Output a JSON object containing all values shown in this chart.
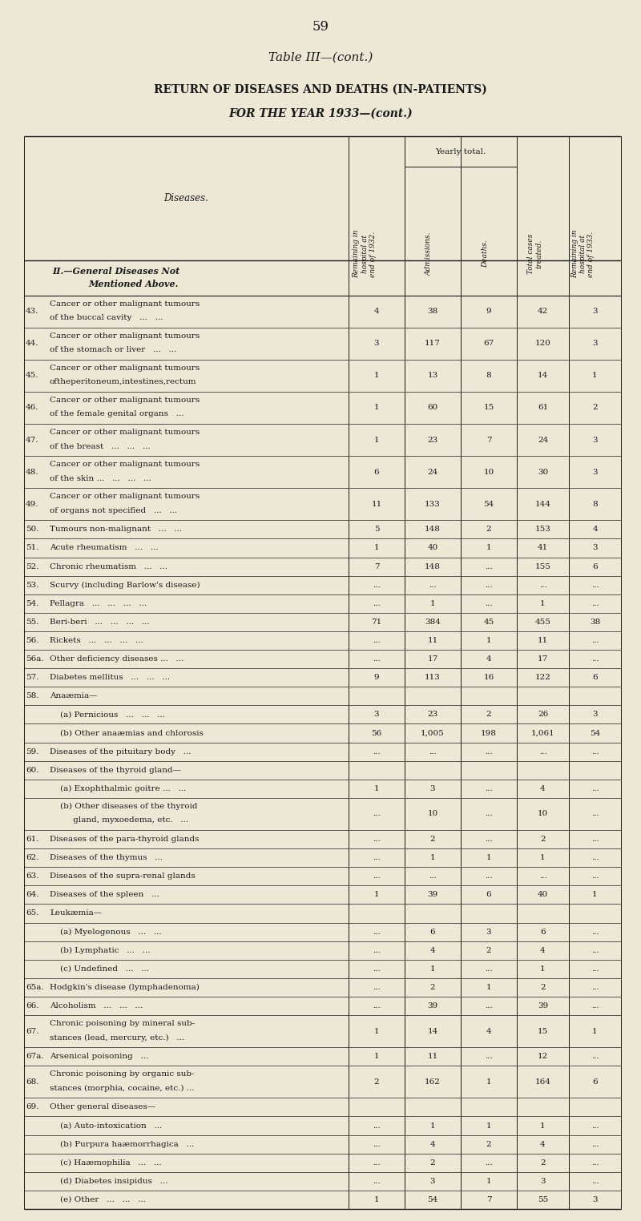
{
  "page_number": "59",
  "table_title": "Table III—(cont.)",
  "subtitle1": "RETURN OF DISEASES AND DEATHS (IN-PATIENTS)",
  "subtitle2": "FOR THE YEAR 1933—(cont.)",
  "col_headers": [
    "Remaining in\nhospital at\nend of 1932.",
    "Admissions.",
    "Deaths.",
    "Total cases\ntreated.",
    "Remaining in\nhospital at\nend of 1933."
  ],
  "yearly_total_label": "Yearly total.",
  "section_header_line1": "II.—General Diseases Not",
  "section_header_line2": "Mentioned Above.",
  "rows": [
    {
      "num": "43.",
      "desc": "Cancer or other malignant tumours\nof the buccal cavity   ...   ...",
      "c1": "4",
      "c2": "38",
      "c3": "9",
      "c4": "42",
      "c5": "3"
    },
    {
      "num": "44.",
      "desc": "Cancer or other malignant tumours\nof the stomach or liver   ...   ...",
      "c1": "3",
      "c2": "117",
      "c3": "67",
      "c4": "120",
      "c5": "3"
    },
    {
      "num": "45.",
      "desc": "Cancer or other malignant tumours\noftheperitoneum,intestines,rectum",
      "c1": "1",
      "c2": "13",
      "c3": "8",
      "c4": "14",
      "c5": "1"
    },
    {
      "num": "46.",
      "desc": "Cancer or other malignant tumours\nof the female genital organs   ...",
      "c1": "1",
      "c2": "60",
      "c3": "15",
      "c4": "61",
      "c5": "2"
    },
    {
      "num": "47.",
      "desc": "Cancer or other malignant tumours\nof the breast   ...   ...   ...",
      "c1": "1",
      "c2": "23",
      "c3": "7",
      "c4": "24",
      "c5": "3"
    },
    {
      "num": "48.",
      "desc": "Cancer or other malignant tumours\nof the skin ...   ...   ...   ...",
      "c1": "6",
      "c2": "24",
      "c3": "10",
      "c4": "30",
      "c5": "3"
    },
    {
      "num": "49.",
      "desc": "Cancer or other malignant tumours\nof organs not specified   ...   ...",
      "c1": "11",
      "c2": "133",
      "c3": "54",
      "c4": "144",
      "c5": "8"
    },
    {
      "num": "50.",
      "desc": "Tumours non-malignant   ...   ...",
      "c1": "5",
      "c2": "148",
      "c3": "2",
      "c4": "153",
      "c5": "4"
    },
    {
      "num": "51.",
      "desc": "Acute rheumatism   ...   ...",
      "c1": "1",
      "c2": "40",
      "c3": "1",
      "c4": "41",
      "c5": "3"
    },
    {
      "num": "52.",
      "desc": "Chronic rheumatism   ...   ...",
      "c1": "7",
      "c2": "148",
      "c3": "...",
      "c4": "155",
      "c5": "6"
    },
    {
      "num": "53.",
      "desc": "Scurvy (including Barlow's disease)",
      "c1": "...",
      "c2": "...",
      "c3": "...",
      "c4": "...",
      "c5": "..."
    },
    {
      "num": "54.",
      "desc": "Pellagra   ...   ...   ...   ...",
      "c1": "...",
      "c2": "1",
      "c3": "...",
      "c4": "1",
      "c5": "..."
    },
    {
      "num": "55.",
      "desc": "Beri-beri   ...   ...   ...   ...",
      "c1": "71",
      "c2": "384",
      "c3": "45",
      "c4": "455",
      "c5": "38"
    },
    {
      "num": "56.",
      "desc": "Rickets   ...   ...   ...   ...",
      "c1": "...",
      "c2": "11",
      "c3": "1",
      "c4": "11",
      "c5": "..."
    },
    {
      "num": "56a.",
      "desc": "Other deficiency diseases ...   ...",
      "c1": "...",
      "c2": "17",
      "c3": "4",
      "c4": "17",
      "c5": "..."
    },
    {
      "num": "57.",
      "desc": "Diabetes mellitus   ...   ...   ...",
      "c1": "9",
      "c2": "113",
      "c3": "16",
      "c4": "122",
      "c5": "6"
    },
    {
      "num": "58.",
      "desc": "Anaæmia—",
      "c1": "",
      "c2": "",
      "c3": "",
      "c4": "",
      "c5": ""
    },
    {
      "num": "",
      "desc": "    (a) Pernicious   ...   ...   ...",
      "c1": "3",
      "c2": "23",
      "c3": "2",
      "c4": "26",
      "c5": "3"
    },
    {
      "num": "",
      "desc": "    (b) Other anaæmias and chlorosis",
      "c1": "56",
      "c2": "1,005",
      "c3": "198",
      "c4": "1,061",
      "c5": "54"
    },
    {
      "num": "59.",
      "desc": "Diseases of the pituitary body   ...",
      "c1": "...",
      "c2": "...",
      "c3": "...",
      "c4": "...",
      "c5": "..."
    },
    {
      "num": "60.",
      "desc": "Diseases of the thyroid gland—",
      "c1": "",
      "c2": "",
      "c3": "",
      "c4": "",
      "c5": ""
    },
    {
      "num": "",
      "desc": "    (a) Exophthalmic goitre ...   ...",
      "c1": "1",
      "c2": "3",
      "c3": "...",
      "c4": "4",
      "c5": "..."
    },
    {
      "num": "",
      "desc": "    (b) Other diseases of the thyroid\n         gland, myxoedema, etc.   ...",
      "c1": "...",
      "c2": "10",
      "c3": "...",
      "c4": "10",
      "c5": "..."
    },
    {
      "num": "61.",
      "desc": "Diseases of the para-thyroid glands",
      "c1": "...",
      "c2": "2",
      "c3": "...",
      "c4": "2",
      "c5": "..."
    },
    {
      "num": "62.",
      "desc": "Diseases of the thymus   ...",
      "c1": "...",
      "c2": "1",
      "c3": "1",
      "c4": "1",
      "c5": "..."
    },
    {
      "num": "63.",
      "desc": "Diseases of the supra-renal glands",
      "c1": "...",
      "c2": "...",
      "c3": "...",
      "c4": "...",
      "c5": "..."
    },
    {
      "num": "64.",
      "desc": "Diseases of the spleen   ...",
      "c1": "1",
      "c2": "39",
      "c3": "6",
      "c4": "40",
      "c5": "1"
    },
    {
      "num": "65.",
      "desc": "Leukæmia—",
      "c1": "",
      "c2": "",
      "c3": "",
      "c4": "",
      "c5": ""
    },
    {
      "num": "",
      "desc": "    (a) Myelogenous   ...   ...",
      "c1": "...",
      "c2": "6",
      "c3": "3",
      "c4": "6",
      "c5": "..."
    },
    {
      "num": "",
      "desc": "    (b) Lymphatic   ...   ...",
      "c1": "...",
      "c2": "4",
      "c3": "2",
      "c4": "4",
      "c5": "..."
    },
    {
      "num": "",
      "desc": "    (c) Undefined   ...   ...",
      "c1": "...",
      "c2": "1",
      "c3": "...",
      "c4": "1",
      "c5": "..."
    },
    {
      "num": "65a.",
      "desc": "Hodgkin's disease (lymphadenoma)",
      "c1": "...",
      "c2": "2",
      "c3": "1",
      "c4": "2",
      "c5": "..."
    },
    {
      "num": "66.",
      "desc": "Alcoholism   ...   ...   ...",
      "c1": "...",
      "c2": "39",
      "c3": "...",
      "c4": "39",
      "c5": "..."
    },
    {
      "num": "67.",
      "desc": "Chronic poisoning by mineral sub-\nstances (lead, mercury, etc.)   ...",
      "c1": "1",
      "c2": "14",
      "c3": "4",
      "c4": "15",
      "c5": "1"
    },
    {
      "num": "67a.",
      "desc": "Arsenical poisoning   ...",
      "c1": "1",
      "c2": "11",
      "c3": "...",
      "c4": "12",
      "c5": "..."
    },
    {
      "num": "68.",
      "desc": "Chronic poisoning by organic sub-\nstances (morphia, cocaine, etc.) ...",
      "c1": "2",
      "c2": "162",
      "c3": "1",
      "c4": "164",
      "c5": "6"
    },
    {
      "num": "69.",
      "desc": "Other general diseases—",
      "c1": "",
      "c2": "",
      "c3": "",
      "c4": "",
      "c5": ""
    },
    {
      "num": "",
      "desc": "    (a) Auto-intoxication   ...",
      "c1": "...",
      "c2": "1",
      "c3": "1",
      "c4": "1",
      "c5": "..."
    },
    {
      "num": "",
      "desc": "    (b) Purpura haæmorrhagica   ...",
      "c1": "...",
      "c2": "4",
      "c3": "2",
      "c4": "4",
      "c5": "..."
    },
    {
      "num": "",
      "desc": "    (c) Haæmophilia   ...   ...",
      "c1": "...",
      "c2": "2",
      "c3": "...",
      "c4": "2",
      "c5": "..."
    },
    {
      "num": "",
      "desc": "    (d) Diabetes insipidus   ...",
      "c1": "...",
      "c2": "3",
      "c3": "1",
      "c4": "3",
      "c5": "..."
    },
    {
      "num": "",
      "desc": "    (e) Other   ...   ...   ...",
      "c1": "1",
      "c2": "54",
      "c3": "7",
      "c4": "55",
      "c5": "3"
    }
  ],
  "bg_color": "#ede8d5",
  "text_color": "#1a1a1a",
  "line_color": "#1a1a1a"
}
